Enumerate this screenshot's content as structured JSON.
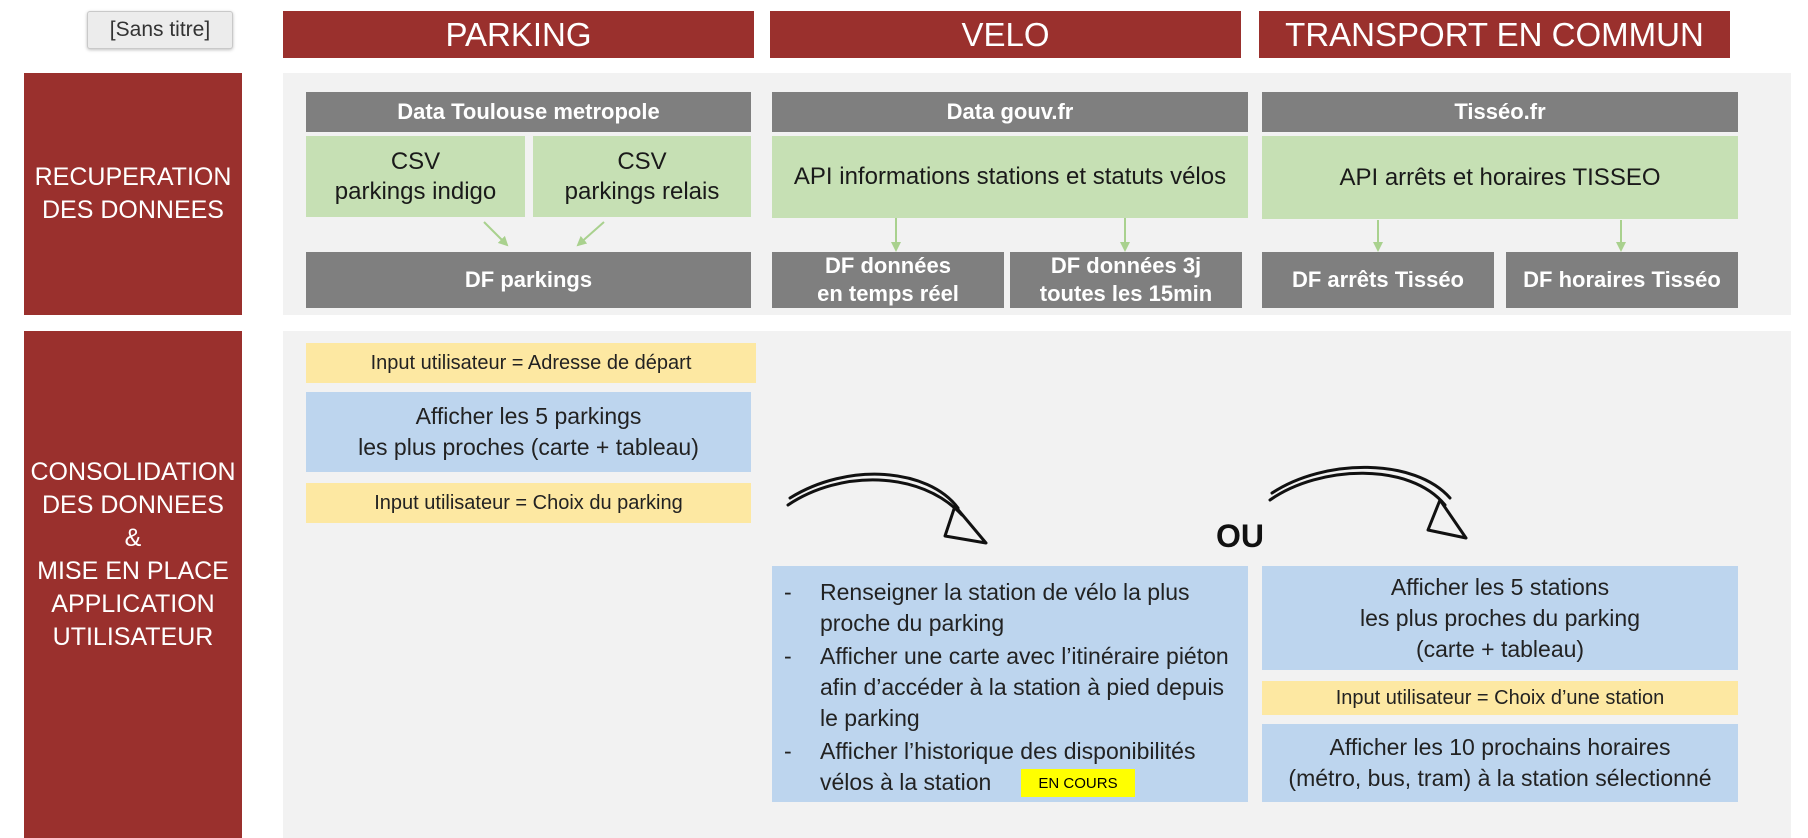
{
  "tab": {
    "label": "[Sans titre]"
  },
  "headers": {
    "parking": "PARKING",
    "velo": "VELO",
    "transport": "TRANSPORT EN COMMUN"
  },
  "rows": {
    "recuperation": "RECUPERATION\nDES DONNEES",
    "consolidation": "CONSOLIDATION\nDES DONNEES\n&\nMISE EN PLACE\nAPPLICATION\nUTILISATEUR"
  },
  "sources": {
    "parking": "Data Toulouse metropole",
    "velo": "Data gouv.fr",
    "transport": "Tisséo.fr"
  },
  "green_boxes": {
    "csv_indigo": "CSV\nparkings indigo",
    "csv_relais": "CSV\nparkings relais",
    "api_velo": "API informations stations et statuts vélos",
    "api_tisseo": "API arrêts et horaires TISSEO"
  },
  "dataframes": {
    "parkings": "DF parkings",
    "velo_temps_reel": "DF données\nen temps réel",
    "velo_3j": "DF données 3j\ntoutes les 15min",
    "arrets": "DF arrêts Tisséo",
    "horaires": "DF horaires Tisséo"
  },
  "parking_flow": {
    "input_adresse": "Input utilisateur = Adresse de départ",
    "afficher_parkings": "Afficher les 5 parkings\nles plus proches (carte + tableau)",
    "input_choix": "Input utilisateur = Choix du parking"
  },
  "or_label": "OU",
  "velo_flow": {
    "items": [
      {
        "dash": "-",
        "text": "Renseigner la station de vélo la plus proche du parking"
      },
      {
        "dash": "-",
        "text": "Afficher une carte avec l’itinéraire piéton afin d’accéder à la station à pied depuis le parking"
      },
      {
        "dash": "-",
        "text": "Afficher l’historique des disponibilités vélos à la station"
      }
    ],
    "status_badge": "EN COURS"
  },
  "transport_flow": {
    "afficher_stations": "Afficher les 5 stations\nles plus proches du parking\n(carte + tableau)",
    "input_station": "Input utilisateur  = Choix d’une station",
    "afficher_horaires": "Afficher les 10 prochains horaires\n(métro, bus, tram) à la station sélectionné"
  },
  "colors": {
    "header_red": "#9a302d",
    "source_gray": "#7f7f7f",
    "csv_green": "#c6e0b4",
    "input_yellow": "#fde8a2",
    "output_blue": "#bdd5ee",
    "badge_yellow": "#ffff00",
    "arrow_green": "#a9d18e"
  }
}
